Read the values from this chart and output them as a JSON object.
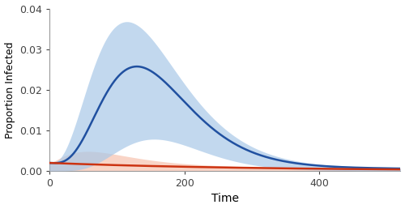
{
  "title": "",
  "xlabel": "Time",
  "ylabel": "Proportion Infected",
  "xlim": [
    0,
    520
  ],
  "ylim": [
    0,
    0.04
  ],
  "xticks": [
    0,
    200,
    400
  ],
  "yticks": [
    0.0,
    0.01,
    0.02,
    0.03,
    0.04
  ],
  "blue_line_color": "#2050a0",
  "orange_line_color": "#cc3311",
  "blue_fill_color": "#a8c8e8",
  "orange_fill_color": "#f5b8a0",
  "blue_fill_alpha": 0.7,
  "orange_fill_alpha": 0.6,
  "figsize": [
    5.0,
    2.58
  ],
  "dpi": 100,
  "bg_color": "#ffffff",
  "blue_mean": {
    "peak_time": 130,
    "peak_val": 0.0245,
    "rise_shape": 5.0,
    "fall_scale": 90.0,
    "init_val": 0.00195
  },
  "blue_upper": {
    "peak_time": 115,
    "peak_val": 0.0355,
    "rise_shape": 4.0,
    "fall_scale": 110.0,
    "init_val": 0.00195
  },
  "blue_lower": {
    "peak_time": 155,
    "peak_val": 0.0078,
    "rise_shape": 7.0,
    "fall_scale": 80.0,
    "init_val": 0.0
  },
  "orange_mean": {
    "peak_time": 10,
    "peak_val": 0.00195,
    "decay_scale": 300.0,
    "init_val": 0.00195
  },
  "orange_upper": {
    "peak_time": 60,
    "peak_val": 0.0033,
    "rise_shape": 2.5,
    "fall_scale": 60.0,
    "init_val": 0.00195
  }
}
